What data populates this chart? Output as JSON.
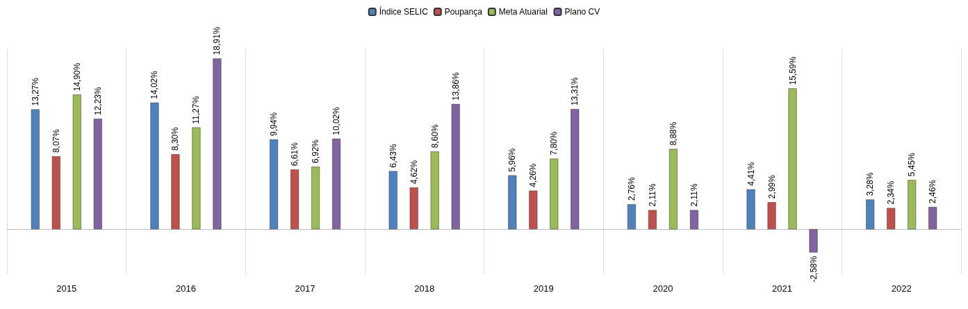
{
  "chart_data": {
    "type": "bar",
    "categories": [
      "2015",
      "2016",
      "2017",
      "2018",
      "2019",
      "2020",
      "2021",
      "2022"
    ],
    "series": [
      {
        "name": "Índice SELIC",
        "color": "#4f81bd",
        "values": [
          13.27,
          14.02,
          9.94,
          6.43,
          5.96,
          2.76,
          4.41,
          3.28
        ],
        "value_labels": [
          "13,27%",
          "14,02%",
          "9,94%",
          "6,43%",
          "5,96%",
          "2,76%",
          "4,41%",
          "3,28%"
        ]
      },
      {
        "name": "Poupança",
        "color": "#c0504d",
        "values": [
          8.07,
          8.3,
          6.61,
          4.62,
          4.26,
          2.11,
          2.99,
          2.34
        ],
        "value_labels": [
          "8,07%",
          "8,30%",
          "6,61%",
          "4,62%",
          "4,26%",
          "2,11%",
          "2,99%",
          "2,34%"
        ]
      },
      {
        "name": "Meta Atuarial",
        "color": "#9bbb59",
        "values": [
          14.9,
          11.27,
          6.92,
          8.6,
          7.8,
          8.88,
          15.59,
          5.45
        ],
        "value_labels": [
          "14,90%",
          "11,27%",
          "6,92%",
          "8,60%",
          "7,80%",
          "8,88%",
          "15,59%",
          "5,45%"
        ]
      },
      {
        "name": "Plano CV",
        "color": "#8064a2",
        "values": [
          12.23,
          18.91,
          10.02,
          13.86,
          13.31,
          2.11,
          -2.58,
          2.46
        ],
        "value_labels": [
          "12,23%",
          "18,91%",
          "10,02%",
          "13,86%",
          "13,31%",
          "2,11%",
          "-2,58%",
          "2,46%"
        ]
      }
    ],
    "grid": "x",
    "legend": "top"
  }
}
